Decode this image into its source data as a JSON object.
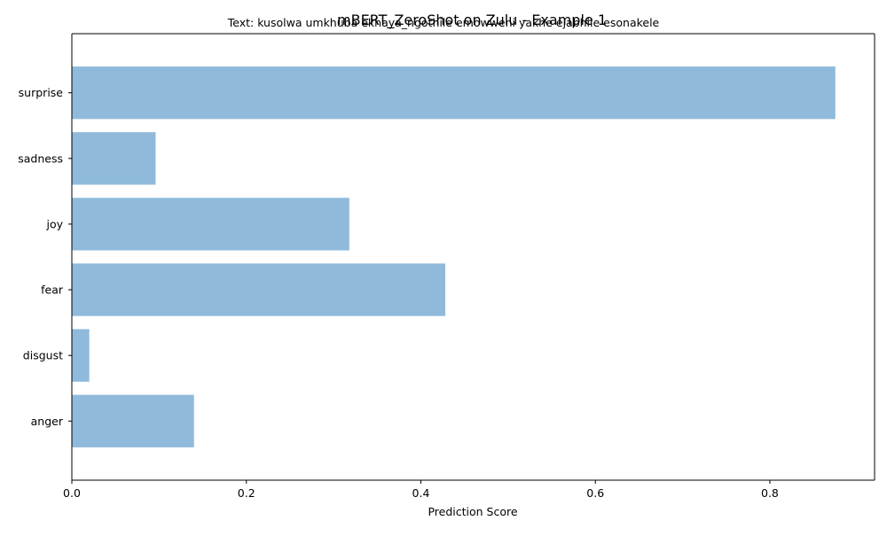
{
  "chart_data": {
    "type": "bar",
    "orientation": "horizontal",
    "title": "mBERT_ZeroShot on Zulu - Example 1",
    "subtitle": "Text: kusolwa umkhuba ekhaya_ngothile emowweni yakhe ejabhile esonakele",
    "xlabel": "Prediction Score",
    "ylabel": "",
    "categories": [
      "anger",
      "disgust",
      "fear",
      "joy",
      "sadness",
      "surprise"
    ],
    "values": [
      0.14,
      0.02,
      0.428,
      0.318,
      0.096,
      0.875
    ],
    "xlim": [
      0,
      0.92
    ],
    "xticks": [
      0.0,
      0.2,
      0.4,
      0.6,
      0.8
    ],
    "xtick_labels": [
      "0.0",
      "0.2",
      "0.4",
      "0.6",
      "0.8"
    ],
    "bar_color": "#8fbadb",
    "grid": false,
    "legend": "none"
  }
}
